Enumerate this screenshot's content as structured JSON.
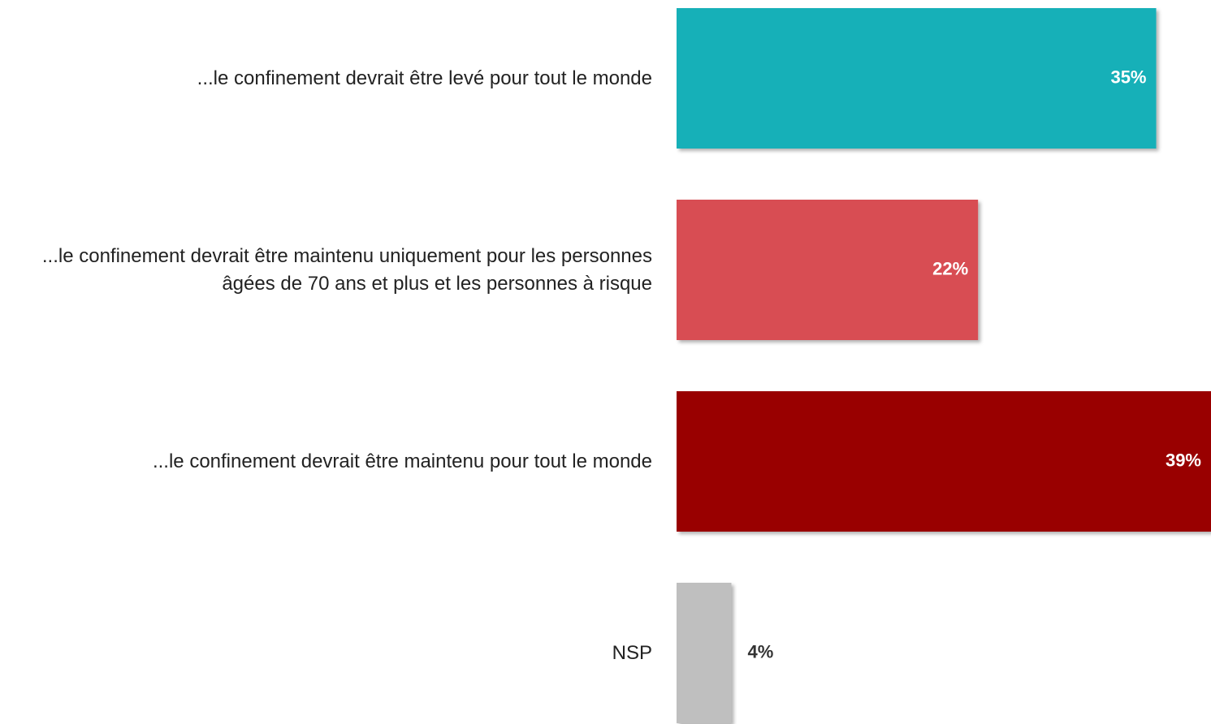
{
  "chart_data": {
    "type": "barh",
    "categories": [
      "...le confinement devrait être levé pour tout le monde",
      "...le confinement devrait être maintenu uniquement pour les personnes âgées de 70 ans et plus et les personnes à risque",
      "...le confinement devrait être maintenu pour tout le monde",
      "NSP"
    ],
    "values": [
      35,
      22,
      39,
      4
    ],
    "value_labels": [
      "35%",
      "22%",
      "39%",
      "4%"
    ],
    "colors": [
      "#14b0b8",
      "#d84e52",
      "#990000",
      "#bfbfbf"
    ],
    "xlim": [
      0,
      39
    ]
  }
}
